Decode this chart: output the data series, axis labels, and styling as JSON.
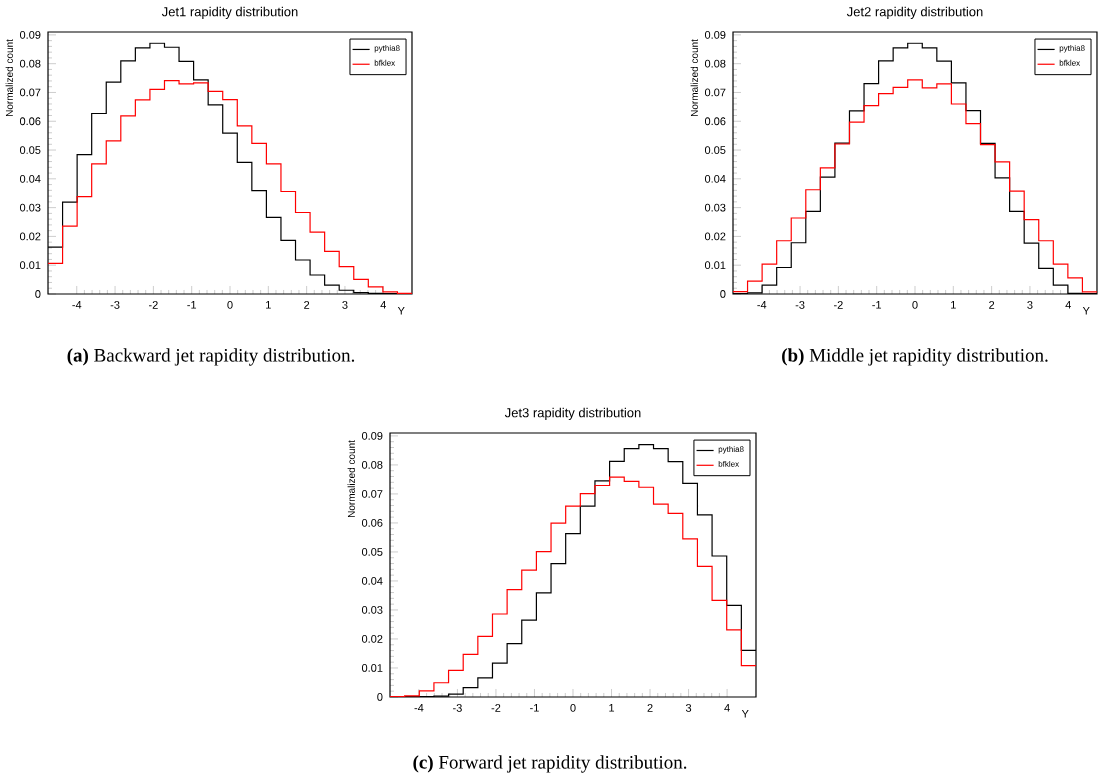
{
  "chart_data": [
    {
      "type": "histogram",
      "title": "Jet1 rapidity distribution",
      "xlabel": "Y",
      "ylabel": "Normalized count",
      "bins": [
        -4.75,
        -4.37,
        -3.99,
        -3.61,
        -3.23,
        -2.85,
        -2.47,
        -2.09,
        -1.71,
        -1.33,
        -0.95,
        -0.57,
        -0.19,
        0.19,
        0.57,
        0.95,
        1.33,
        1.71,
        2.09,
        2.47,
        2.85,
        3.23,
        3.61,
        3.99,
        4.37,
        4.75
      ],
      "series": [
        {
          "name": "pythia8",
          "color": "#000000",
          "values": [
            0.0163,
            0.0319,
            0.0484,
            0.0627,
            0.0736,
            0.081,
            0.0855,
            0.0871,
            0.0857,
            0.0808,
            0.0744,
            0.0657,
            0.0559,
            0.0457,
            0.0359,
            0.0266,
            0.0186,
            0.0118,
            0.0066,
            0.0031,
            0.0013,
            0.0005,
            0.0002,
            0.0001,
            0.0
          ]
        },
        {
          "name": "bfklex",
          "color": "#ff0000",
          "values": [
            0.0106,
            0.0236,
            0.0338,
            0.0452,
            0.0532,
            0.0619,
            0.0674,
            0.0711,
            0.0741,
            0.073,
            0.0733,
            0.0704,
            0.0675,
            0.0584,
            0.0523,
            0.0452,
            0.0356,
            0.0283,
            0.0215,
            0.0148,
            0.0095,
            0.0051,
            0.0025,
            0.0007,
            0.0002
          ]
        }
      ],
      "xlim": [
        -4.75,
        4.75
      ],
      "ylim": [
        0,
        0.091
      ],
      "xticks": [
        -4,
        -3,
        -2,
        -1,
        0,
        1,
        2,
        3,
        4
      ],
      "yticks": [
        0,
        0.01,
        0.02,
        0.03,
        0.04,
        0.05,
        0.06,
        0.07,
        0.08,
        0.09
      ],
      "legend": "top right",
      "annotations": [
        "**(a)** Backward jet rapidity distribution."
      ]
    },
    {
      "type": "histogram",
      "title": "Jet2 rapidity distribution",
      "xlabel": "Y",
      "ylabel": "Normalized count",
      "bins": [
        -4.75,
        -4.37,
        -3.99,
        -3.61,
        -3.23,
        -2.85,
        -2.47,
        -2.09,
        -1.71,
        -1.33,
        -0.95,
        -0.57,
        -0.19,
        0.19,
        0.57,
        0.95,
        1.33,
        1.71,
        2.09,
        2.47,
        2.85,
        3.23,
        3.61,
        3.99,
        4.37,
        4.75
      ],
      "series": [
        {
          "name": "pythia8",
          "color": "#000000",
          "values": [
            0.0001,
            0.0004,
            0.0031,
            0.0092,
            0.0178,
            0.0287,
            0.0406,
            0.0524,
            0.0636,
            0.0731,
            0.081,
            0.0855,
            0.0871,
            0.0855,
            0.0809,
            0.0733,
            0.0637,
            0.0523,
            0.0403,
            0.0287,
            0.0177,
            0.0089,
            0.0031,
            0.0002,
            0.0001
          ]
        },
        {
          "name": "bfklex",
          "color": "#ff0000",
          "values": [
            0.0008,
            0.0045,
            0.0104,
            0.0185,
            0.0264,
            0.0362,
            0.0438,
            0.0521,
            0.0597,
            0.0654,
            0.0696,
            0.0718,
            0.0744,
            0.0716,
            0.073,
            0.066,
            0.0592,
            0.0519,
            0.0459,
            0.0357,
            0.0258,
            0.0185,
            0.0104,
            0.0056,
            0.0007
          ]
        }
      ],
      "xlim": [
        -4.75,
        4.75
      ],
      "ylim": [
        0,
        0.091
      ],
      "xticks": [
        -4,
        -3,
        -2,
        -1,
        0,
        1,
        2,
        3,
        4
      ],
      "yticks": [
        0,
        0.01,
        0.02,
        0.03,
        0.04,
        0.05,
        0.06,
        0.07,
        0.08,
        0.09
      ],
      "legend": "top right",
      "annotations": [
        "**(b)** Middle jet rapidity distribution."
      ]
    },
    {
      "type": "histogram",
      "title": "Jet3 rapidity distribution",
      "xlabel": "Y",
      "ylabel": "Normalized count",
      "bins": [
        -4.75,
        -4.37,
        -3.99,
        -3.61,
        -3.23,
        -2.85,
        -2.47,
        -2.09,
        -1.71,
        -1.33,
        -0.95,
        -0.57,
        -0.19,
        0.19,
        0.57,
        0.95,
        1.33,
        1.71,
        2.09,
        2.47,
        2.85,
        3.23,
        3.61,
        3.99,
        4.37,
        4.75
      ],
      "series": [
        {
          "name": "pythia8",
          "color": "#000000",
          "values": [
            0.0,
            0.0001,
            0.0001,
            0.0003,
            0.001,
            0.0032,
            0.0066,
            0.0117,
            0.0184,
            0.0265,
            0.0359,
            0.046,
            0.0563,
            0.0658,
            0.0745,
            0.0812,
            0.0856,
            0.087,
            0.0856,
            0.0811,
            0.0736,
            0.0628,
            0.0486,
            0.0316,
            0.0161
          ]
        },
        {
          "name": "bfklex",
          "color": "#ff0000",
          "values": [
            0.0001,
            0.0004,
            0.0021,
            0.0049,
            0.0092,
            0.0147,
            0.0209,
            0.0286,
            0.037,
            0.0437,
            0.0501,
            0.0599,
            0.0658,
            0.0701,
            0.0729,
            0.0758,
            0.0743,
            0.0723,
            0.0665,
            0.0633,
            0.0545,
            0.045,
            0.0333,
            0.0231,
            0.0108
          ]
        }
      ],
      "xlim": [
        -4.75,
        4.75
      ],
      "ylim": [
        0,
        0.091
      ],
      "xticks": [
        -4,
        -3,
        -2,
        -1,
        0,
        1,
        2,
        3,
        4
      ],
      "yticks": [
        0,
        0.01,
        0.02,
        0.03,
        0.04,
        0.05,
        0.06,
        0.07,
        0.08,
        0.09
      ],
      "legend": "top right",
      "annotations": [
        "**(c)** Forward jet rapidity distribution."
      ]
    }
  ]
}
